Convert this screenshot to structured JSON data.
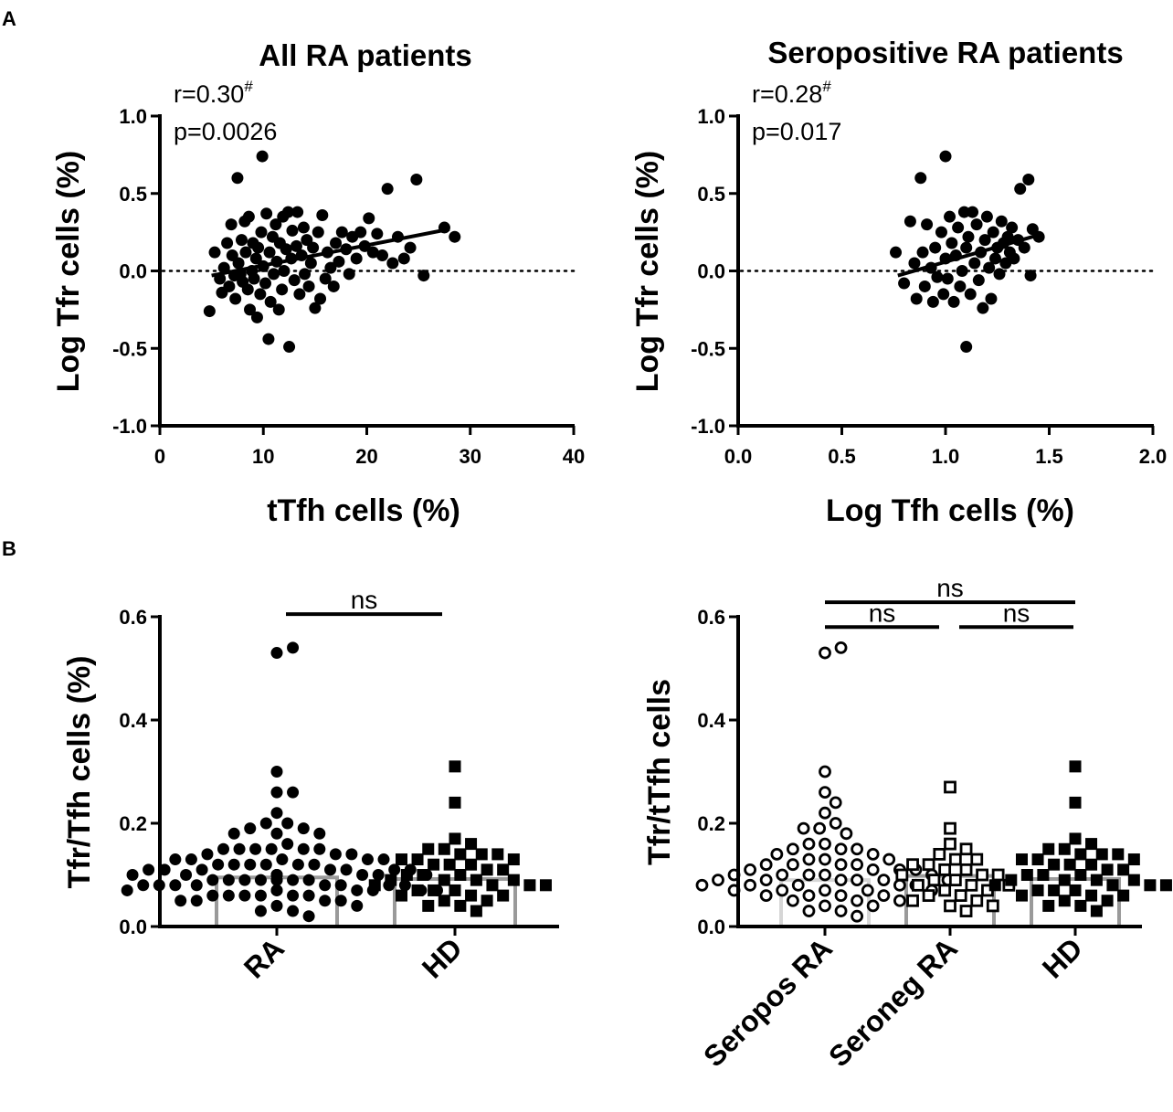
{
  "panel_labels": {
    "a": "A",
    "b": "B"
  },
  "chart_data": [
    {
      "id": "a1",
      "type": "scatter",
      "title": "All RA patients",
      "xlabel": "tTfh cells (%)",
      "ylabel": "Log Tfr cells (%)",
      "xlim": [
        0,
        40
      ],
      "ylim": [
        -1.0,
        1.0
      ],
      "xticks": [
        0,
        10,
        20,
        30,
        40
      ],
      "xtick_labels": [
        "0",
        "10",
        "20",
        "30",
        "40"
      ],
      "yticks": [
        1.0,
        0.5,
        0.0,
        -0.5,
        -1.0
      ],
      "ytick_labels": [
        "1.0",
        "0.5",
        "0.0",
        "-0.5",
        "-1.0"
      ],
      "reference_line_y": 0,
      "annotation": {
        "r_text": "r=0.30",
        "r_mark": "#",
        "p_text": "p=0.0026"
      },
      "regression": {
        "x": [
          5,
          28
        ],
        "y": [
          -0.03,
          0.27
        ]
      },
      "points": [
        [
          4.8,
          -0.26
        ],
        [
          5.3,
          0.12
        ],
        [
          5.8,
          -0.05
        ],
        [
          6.0,
          -0.14
        ],
        [
          6.2,
          0.02
        ],
        [
          6.5,
          0.18
        ],
        [
          6.7,
          -0.1
        ],
        [
          6.9,
          0.3
        ],
        [
          7.0,
          0.1
        ],
        [
          7.2,
          -0.03
        ],
        [
          7.3,
          -0.18
        ],
        [
          7.5,
          0.6
        ],
        [
          7.6,
          0.05
        ],
        [
          7.8,
          -0.02
        ],
        [
          7.9,
          0.2
        ],
        [
          8.0,
          -0.07
        ],
        [
          8.2,
          0.32
        ],
        [
          8.3,
          0.12
        ],
        [
          8.5,
          -0.12
        ],
        [
          8.6,
          0.35
        ],
        [
          8.7,
          -0.25
        ],
        [
          8.9,
          0.0
        ],
        [
          9.0,
          0.18
        ],
        [
          9.1,
          -0.05
        ],
        [
          9.3,
          0.08
        ],
        [
          9.4,
          -0.3
        ],
        [
          9.5,
          0.15
        ],
        [
          9.7,
          -0.15
        ],
        [
          9.8,
          0.25
        ],
        [
          9.9,
          0.74
        ],
        [
          10.0,
          0.03
        ],
        [
          10.2,
          -0.08
        ],
        [
          10.3,
          0.37
        ],
        [
          10.5,
          -0.44
        ],
        [
          10.6,
          0.12
        ],
        [
          10.7,
          -0.2
        ],
        [
          10.9,
          0.22
        ],
        [
          11.0,
          -0.02
        ],
        [
          11.2,
          0.3
        ],
        [
          11.3,
          0.06
        ],
        [
          11.5,
          -0.25
        ],
        [
          11.6,
          0.18
        ],
        [
          11.8,
          -0.12
        ],
        [
          11.9,
          0.35
        ],
        [
          12.0,
          0.0
        ],
        [
          12.2,
          0.14
        ],
        [
          12.4,
          0.38
        ],
        [
          12.5,
          -0.49
        ],
        [
          12.7,
          0.08
        ],
        [
          12.8,
          0.26
        ],
        [
          13.0,
          -0.06
        ],
        [
          13.2,
          0.16
        ],
        [
          13.3,
          0.38
        ],
        [
          13.5,
          -0.15
        ],
        [
          13.7,
          0.1
        ],
        [
          13.9,
          0.28
        ],
        [
          14.0,
          -0.02
        ],
        [
          14.2,
          0.2
        ],
        [
          14.4,
          -0.1
        ],
        [
          14.6,
          0.05
        ],
        [
          14.8,
          0.15
        ],
        [
          15.0,
          -0.24
        ],
        [
          15.3,
          0.25
        ],
        [
          15.5,
          -0.18
        ],
        [
          15.7,
          0.36
        ],
        [
          16.0,
          -0.05
        ],
        [
          16.2,
          0.12
        ],
        [
          16.5,
          0.02
        ],
        [
          16.8,
          -0.1
        ],
        [
          17.0,
          0.18
        ],
        [
          17.3,
          0.06
        ],
        [
          17.6,
          0.25
        ],
        [
          18.0,
          0.14
        ],
        [
          18.3,
          -0.02
        ],
        [
          18.6,
          0.22
        ],
        [
          19.0,
          0.08
        ],
        [
          19.4,
          0.25
        ],
        [
          19.8,
          0.16
        ],
        [
          20.2,
          0.34
        ],
        [
          20.6,
          0.12
        ],
        [
          21.0,
          0.24
        ],
        [
          21.5,
          0.1
        ],
        [
          22.0,
          0.53
        ],
        [
          22.5,
          0.05
        ],
        [
          23.0,
          0.22
        ],
        [
          23.6,
          0.08
        ],
        [
          24.2,
          0.15
        ],
        [
          24.8,
          0.59
        ],
        [
          25.5,
          -0.03
        ],
        [
          27.5,
          0.28
        ],
        [
          28.5,
          0.22
        ]
      ]
    },
    {
      "id": "a2",
      "type": "scatter",
      "title": "Seropositive RA patients",
      "xlabel": "Log Tfh cells (%)",
      "ylabel": "Log Tfr cells (%)",
      "xlim": [
        0.0,
        2.0
      ],
      "ylim": [
        -1.0,
        1.0
      ],
      "xticks": [
        0.0,
        0.5,
        1.0,
        1.5,
        2.0
      ],
      "xtick_labels": [
        "0.0",
        "0.5",
        "1.0",
        "1.5",
        "2.0"
      ],
      "yticks": [
        1.0,
        0.5,
        0.0,
        -0.5,
        -1.0
      ],
      "ytick_labels": [
        "1.0",
        "0.5",
        "0.0",
        "-0.5",
        "-1.0"
      ],
      "reference_line_y": 0,
      "annotation": {
        "r_text": "r=0.28",
        "r_mark": "#",
        "p_text": "p=0.017"
      },
      "regression": {
        "x": [
          0.77,
          1.47
        ],
        "y": [
          -0.03,
          0.24
        ]
      },
      "points": [
        [
          0.76,
          0.12
        ],
        [
          0.8,
          -0.08
        ],
        [
          0.83,
          0.32
        ],
        [
          0.85,
          0.05
        ],
        [
          0.86,
          -0.18
        ],
        [
          0.88,
          0.6
        ],
        [
          0.89,
          0.12
        ],
        [
          0.9,
          -0.1
        ],
        [
          0.91,
          0.3
        ],
        [
          0.93,
          0.02
        ],
        [
          0.94,
          -0.2
        ],
        [
          0.95,
          0.15
        ],
        [
          0.96,
          -0.04
        ],
        [
          0.98,
          0.25
        ],
        [
          0.99,
          -0.15
        ],
        [
          1.0,
          0.74
        ],
        [
          1.0,
          0.08
        ],
        [
          1.01,
          -0.05
        ],
        [
          1.02,
          0.35
        ],
        [
          1.03,
          0.18
        ],
        [
          1.04,
          -0.2
        ],
        [
          1.05,
          0.1
        ],
        [
          1.06,
          0.28
        ],
        [
          1.07,
          -0.1
        ],
        [
          1.08,
          0.0
        ],
        [
          1.09,
          0.38
        ],
        [
          1.1,
          -0.49
        ],
        [
          1.1,
          0.15
        ],
        [
          1.11,
          0.22
        ],
        [
          1.12,
          -0.15
        ],
        [
          1.13,
          0.38
        ],
        [
          1.14,
          0.05
        ],
        [
          1.15,
          0.3
        ],
        [
          1.16,
          -0.06
        ],
        [
          1.17,
          0.12
        ],
        [
          1.18,
          -0.24
        ],
        [
          1.19,
          0.2
        ],
        [
          1.2,
          0.35
        ],
        [
          1.21,
          0.02
        ],
        [
          1.22,
          -0.18
        ],
        [
          1.23,
          0.25
        ],
        [
          1.24,
          0.08
        ],
        [
          1.25,
          0.15
        ],
        [
          1.26,
          -0.02
        ],
        [
          1.27,
          0.32
        ],
        [
          1.28,
          0.18
        ],
        [
          1.29,
          0.05
        ],
        [
          1.3,
          0.22
        ],
        [
          1.31,
          0.12
        ],
        [
          1.32,
          0.28
        ],
        [
          1.33,
          0.08
        ],
        [
          1.35,
          0.2
        ],
        [
          1.36,
          0.53
        ],
        [
          1.38,
          0.15
        ],
        [
          1.4,
          0.59
        ],
        [
          1.41,
          -0.03
        ],
        [
          1.42,
          0.27
        ],
        [
          1.45,
          0.22
        ]
      ]
    },
    {
      "id": "b1",
      "type": "dotplot",
      "ylabel": "Tfr/Tfh cells (%)",
      "ylim": [
        0,
        0.6
      ],
      "yticks": [
        0.6,
        0.4,
        0.2,
        0.0
      ],
      "ytick_labels": [
        "0.6",
        "0.4",
        "0.2",
        "0.0"
      ],
      "categories": [
        "RA",
        "HD"
      ],
      "bar_medians": [
        0.095,
        0.092
      ],
      "marker_styles": [
        "filled-circle",
        "filled-square"
      ],
      "groups": [
        {
          "name": "RA",
          "values": [
            0.53,
            0.54,
            0.3,
            0.26,
            0.26,
            0.22,
            0.2,
            0.2,
            0.19,
            0.19,
            0.18,
            0.18,
            0.18,
            0.16,
            0.15,
            0.15,
            0.15,
            0.15,
            0.15,
            0.15,
            0.14,
            0.14,
            0.14,
            0.13,
            0.13,
            0.13,
            0.13,
            0.13,
            0.12,
            0.12,
            0.12,
            0.12,
            0.12,
            0.12,
            0.11,
            0.11,
            0.11,
            0.11,
            0.11,
            0.11,
            0.11,
            0.1,
            0.1,
            0.1,
            0.1,
            0.1,
            0.1,
            0.1,
            0.1,
            0.09,
            0.09,
            0.09,
            0.09,
            0.09,
            0.09,
            0.09,
            0.09,
            0.08,
            0.08,
            0.08,
            0.08,
            0.08,
            0.08,
            0.08,
            0.08,
            0.07,
            0.07,
            0.07,
            0.07,
            0.07,
            0.07,
            0.07,
            0.06,
            0.06,
            0.06,
            0.06,
            0.06,
            0.06,
            0.05,
            0.05,
            0.05,
            0.05,
            0.04,
            0.04,
            0.03,
            0.03,
            0.02
          ]
        },
        {
          "name": "HD",
          "values": [
            0.31,
            0.24,
            0.17,
            0.16,
            0.15,
            0.15,
            0.14,
            0.14,
            0.14,
            0.13,
            0.13,
            0.13,
            0.12,
            0.12,
            0.12,
            0.11,
            0.11,
            0.1,
            0.1,
            0.1,
            0.09,
            0.09,
            0.09,
            0.09,
            0.08,
            0.08,
            0.08,
            0.08,
            0.07,
            0.07,
            0.07,
            0.06,
            0.06,
            0.06,
            0.05,
            0.05,
            0.04,
            0.04,
            0.03
          ]
        }
      ],
      "comparisons": [
        {
          "from": 0,
          "to": 1,
          "y": 0.605,
          "label": "ns"
        }
      ]
    },
    {
      "id": "b2",
      "type": "dotplot",
      "ylabel": "Tfr/tTfh cells",
      "ylim": [
        0,
        0.6
      ],
      "yticks": [
        0.6,
        0.4,
        0.2,
        0.0
      ],
      "ytick_labels": [
        "0.6",
        "0.4",
        "0.2",
        "0.0"
      ],
      "categories": [
        "Seropos RA",
        "Seroneg RA",
        "HD"
      ],
      "bar_medians": [
        0.09,
        0.098,
        0.092
      ],
      "marker_styles": [
        "open-circle",
        "open-square",
        "filled-square"
      ],
      "groups": [
        {
          "name": "Seropos RA",
          "values": [
            0.53,
            0.54,
            0.3,
            0.26,
            0.24,
            0.22,
            0.2,
            0.19,
            0.19,
            0.18,
            0.16,
            0.16,
            0.15,
            0.15,
            0.15,
            0.14,
            0.14,
            0.13,
            0.13,
            0.13,
            0.12,
            0.12,
            0.12,
            0.12,
            0.11,
            0.11,
            0.11,
            0.11,
            0.1,
            0.1,
            0.1,
            0.1,
            0.1,
            0.09,
            0.09,
            0.09,
            0.09,
            0.09,
            0.09,
            0.08,
            0.08,
            0.08,
            0.08,
            0.08,
            0.07,
            0.07,
            0.07,
            0.07,
            0.07,
            0.06,
            0.06,
            0.06,
            0.06,
            0.05,
            0.05,
            0.05,
            0.04,
            0.04,
            0.03,
            0.03,
            0.02
          ]
        },
        {
          "name": "Seroneg RA",
          "values": [
            0.27,
            0.19,
            0.16,
            0.15,
            0.14,
            0.13,
            0.13,
            0.12,
            0.12,
            0.11,
            0.11,
            0.1,
            0.1,
            0.1,
            0.09,
            0.09,
            0.08,
            0.08,
            0.08,
            0.07,
            0.07,
            0.06,
            0.06,
            0.05,
            0.05,
            0.04,
            0.04,
            0.03
          ]
        },
        {
          "name": "HD",
          "values": [
            0.31,
            0.24,
            0.17,
            0.16,
            0.15,
            0.15,
            0.14,
            0.14,
            0.14,
            0.13,
            0.13,
            0.13,
            0.12,
            0.12,
            0.12,
            0.11,
            0.11,
            0.1,
            0.1,
            0.1,
            0.09,
            0.09,
            0.09,
            0.09,
            0.08,
            0.08,
            0.08,
            0.08,
            0.07,
            0.07,
            0.07,
            0.06,
            0.06,
            0.06,
            0.05,
            0.05,
            0.04,
            0.04,
            0.03
          ]
        }
      ],
      "comparisons": [
        {
          "from": 0,
          "to": 2,
          "y": 0.628,
          "label": "ns"
        },
        {
          "from": 0,
          "to": 1,
          "y": 0.58,
          "label": "ns"
        },
        {
          "from": 1,
          "to": 2,
          "y": 0.58,
          "label": "ns"
        }
      ]
    }
  ]
}
